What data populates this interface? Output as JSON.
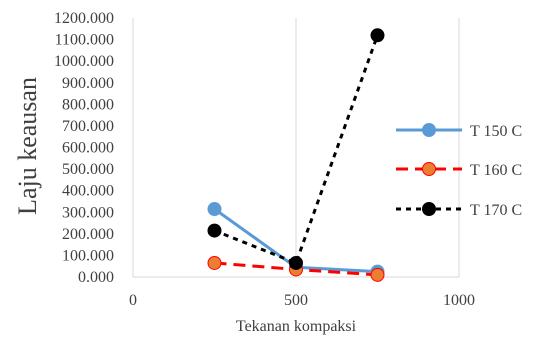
{
  "chart_data": {
    "type": "scatter",
    "title": "",
    "xlabel": "Tekanan kompaksi",
    "ylabel": "Laju keausan",
    "xlim": [
      0,
      1000
    ],
    "ylim": [
      0,
      1200
    ],
    "x_ticks": [
      "0",
      "500",
      "1000"
    ],
    "y_ticks": [
      "0.000",
      "100.000",
      "200.000",
      "300.000",
      "400.000",
      "500.000",
      "600.000",
      "700.000",
      "800.000",
      "900.000",
      "1000.000",
      "1100.000",
      "1200.000"
    ],
    "grid": "vertical",
    "legend_position": "right",
    "series": [
      {
        "name": "T 150 C",
        "color": "#5B9BD5",
        "line_style": "solid",
        "x": [
          250,
          500,
          750
        ],
        "y": [
          315,
          45,
          25
        ]
      },
      {
        "name": "T 160 C",
        "color": "#FF0000",
        "marker_color": "#ED7D31",
        "line_style": "dashed",
        "x": [
          250,
          500,
          750
        ],
        "y": [
          65,
          35,
          10
        ]
      },
      {
        "name": "T 170 C",
        "color": "#000000",
        "line_style": "dotted",
        "x": [
          250,
          500,
          750
        ],
        "y": [
          215,
          65,
          1120
        ]
      }
    ]
  }
}
